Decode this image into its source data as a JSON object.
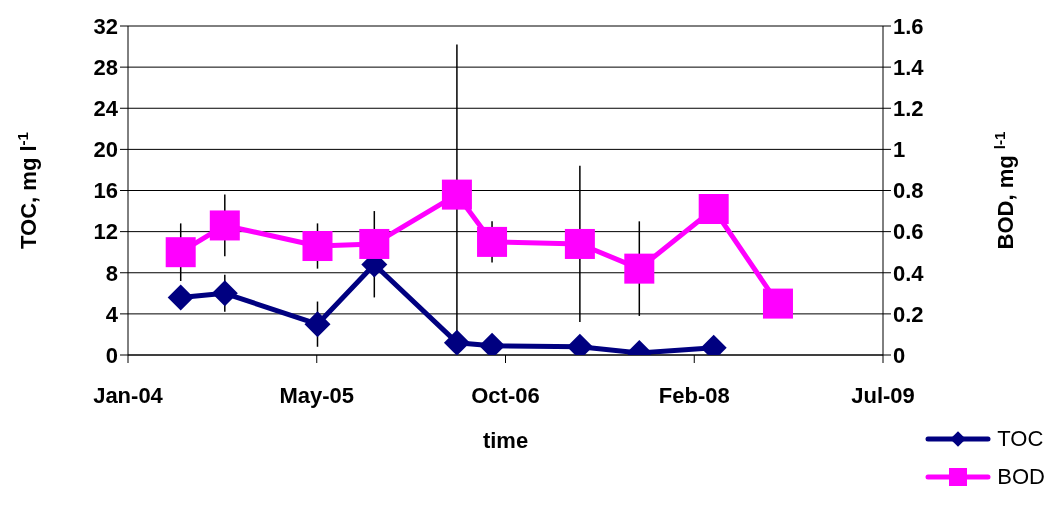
{
  "chart_data": {
    "type": "line",
    "xlabel": "time",
    "ylabel": "TOC, mg l$^{-1}$",
    "y2label": "BOD, mg $^{l-1}$",
    "x": [
      "2004-05-21",
      "2004-09-16",
      "2005-05-22",
      "2005-10-21",
      "2006-05-30",
      "2006-09-01",
      "2007-04-24",
      "2007-09-30",
      "2008-04-16",
      "2008-10-05"
    ],
    "xlim": [
      "2004-01-01",
      "2009-07-13"
    ],
    "xticks": [
      {
        "value": "2004-01-01",
        "label": "Jan-04"
      },
      {
        "value": "2005-05-20",
        "label": "May-05"
      },
      {
        "value": "2006-10-07",
        "label": "Oct-06"
      },
      {
        "value": "2008-02-24",
        "label": "Feb-08"
      },
      {
        "value": "2009-07-13",
        "label": "Jul-09"
      }
    ],
    "ylim": [
      0,
      32
    ],
    "yticks": [
      0,
      4,
      8,
      12,
      16,
      20,
      24,
      28,
      32
    ],
    "y2lim": [
      0,
      1.6
    ],
    "y2ticks": [
      0,
      0.2,
      0.4,
      0.6,
      0.8,
      1,
      1.2,
      1.4,
      1.6
    ],
    "series": [
      {
        "name": "TOC",
        "color": "#000080",
        "marker": "diamond",
        "values": [
          5.6,
          6.0,
          3.0,
          8.8,
          1.2,
          0.9,
          0.8,
          0.2,
          0.7,
          null
        ],
        "errors": [
          null,
          1.8,
          2.2,
          3.2,
          null,
          null,
          null,
          null,
          null,
          null
        ]
      },
      {
        "name": "BOD",
        "color": "#ff00ff",
        "marker": "square",
        "axis": "y2",
        "values": [
          0.5,
          0.63,
          0.53,
          0.54,
          0.78,
          0.55,
          0.54,
          0.42,
          0.71,
          0.25
        ],
        "errors": [
          0.14,
          0.15,
          0.11,
          0.16,
          0.73,
          0.1,
          0.38,
          0.23,
          null,
          null
        ]
      }
    ],
    "grid": "y",
    "legend": "bottom right",
    "line_style": "solid"
  }
}
